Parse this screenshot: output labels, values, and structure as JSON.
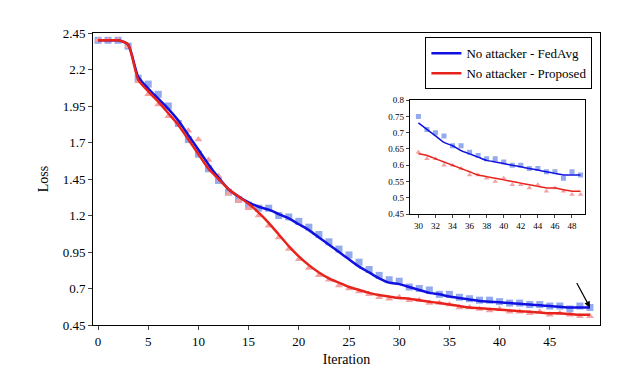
{
  "chart_data": [
    {
      "type": "line",
      "x_label": "Iteration",
      "y_label": "Loss",
      "x": [
        0,
        1,
        2,
        3,
        4,
        5,
        6,
        7,
        8,
        9,
        10,
        11,
        12,
        13,
        14,
        15,
        16,
        17,
        18,
        19,
        20,
        21,
        22,
        23,
        24,
        25,
        26,
        27,
        28,
        29,
        30,
        31,
        32,
        33,
        34,
        35,
        36,
        37,
        38,
        39,
        40,
        41,
        42,
        43,
        44,
        45,
        46,
        47,
        48,
        49
      ],
      "xlim": [
        -0.5,
        50
      ],
      "xticks": [
        0,
        5,
        10,
        15,
        20,
        25,
        30,
        35,
        40,
        45
      ],
      "ylim": [
        0.45,
        2.45
      ],
      "yticks": [
        0.45,
        0.7,
        0.95,
        1.2,
        1.45,
        1.7,
        1.95,
        2.2,
        2.45
      ],
      "grid": false,
      "legend": "upper right",
      "series": [
        {
          "type": "scatter",
          "marker": "square",
          "color": "#93abee",
          "values": [
            2.4,
            2.4,
            2.4,
            2.36,
            2.14,
            2.1,
            2.03,
            1.95,
            1.83,
            1.72,
            1.62,
            1.52,
            1.44,
            1.36,
            1.31,
            1.27,
            1.25,
            1.25,
            1.2,
            1.19,
            1.16,
            1.12,
            1.07,
            1.02,
            0.97,
            0.93,
            0.88,
            0.83,
            0.79,
            0.76,
            0.75,
            0.71,
            0.7,
            0.69,
            0.66,
            0.66,
            0.64,
            0.63,
            0.62,
            0.62,
            0.61,
            0.6,
            0.6,
            0.59,
            0.59,
            0.58,
            0.58,
            0.56,
            0.58,
            0.57
          ]
        },
        {
          "type": "scatter",
          "marker": "triangle",
          "color": "#f4a3a3",
          "values": [
            2.4,
            2.4,
            2.4,
            2.36,
            2.12,
            2.03,
            1.96,
            1.88,
            1.84,
            1.78,
            1.72,
            1.58,
            1.47,
            1.35,
            1.3,
            1.25,
            1.2,
            1.13,
            1.05,
            0.97,
            0.9,
            0.84,
            0.79,
            0.76,
            0.72,
            0.7,
            0.68,
            0.66,
            0.64,
            0.63,
            0.64,
            0.62,
            0.62,
            0.6,
            0.6,
            0.59,
            0.57,
            0.57,
            0.56,
            0.55,
            0.56,
            0.54,
            0.54,
            0.53,
            0.54,
            0.52,
            0.53,
            0.52,
            0.51,
            0.51
          ]
        },
        {
          "type": "line",
          "name": "No attacker - FedAvg",
          "color": "#1010e0",
          "line_style": "solid",
          "values": [
            2.4,
            2.4,
            2.4,
            2.37,
            2.15,
            2.07,
            2.0,
            1.93,
            1.85,
            1.75,
            1.65,
            1.55,
            1.46,
            1.38,
            1.33,
            1.29,
            1.26,
            1.24,
            1.21,
            1.18,
            1.14,
            1.1,
            1.05,
            1.0,
            0.95,
            0.9,
            0.85,
            0.81,
            0.77,
            0.74,
            0.73,
            0.71,
            0.69,
            0.67,
            0.66,
            0.645,
            0.635,
            0.625,
            0.615,
            0.61,
            0.605,
            0.6,
            0.595,
            0.59,
            0.585,
            0.58,
            0.575,
            0.57,
            0.57,
            0.57
          ]
        },
        {
          "type": "line",
          "name": "No attacker - Proposed",
          "color": "#e8231c",
          "line_style": "solid",
          "values": [
            2.4,
            2.4,
            2.4,
            2.37,
            2.13,
            2.05,
            1.98,
            1.9,
            1.82,
            1.72,
            1.62,
            1.52,
            1.45,
            1.38,
            1.33,
            1.28,
            1.22,
            1.15,
            1.07,
            0.99,
            0.92,
            0.86,
            0.81,
            0.77,
            0.74,
            0.71,
            0.69,
            0.67,
            0.655,
            0.645,
            0.635,
            0.63,
            0.62,
            0.61,
            0.6,
            0.59,
            0.58,
            0.57,
            0.565,
            0.56,
            0.555,
            0.55,
            0.545,
            0.54,
            0.535,
            0.53,
            0.53,
            0.525,
            0.52,
            0.52
          ]
        }
      ]
    },
    {
      "type": "line",
      "x": [
        30,
        31,
        32,
        33,
        34,
        35,
        36,
        37,
        38,
        39,
        40,
        41,
        42,
        43,
        44,
        45,
        46,
        47,
        48,
        49
      ],
      "xlim": [
        29,
        49.5
      ],
      "xticks": [
        30,
        32,
        34,
        36,
        38,
        40,
        42,
        44,
        46,
        48
      ],
      "ylim": [
        0.45,
        0.8
      ],
      "yticks": [
        0.45,
        0.5,
        0.55,
        0.6,
        0.65,
        0.7,
        0.75,
        0.8
      ],
      "grid": false,
      "series": [
        {
          "type": "scatter",
          "marker": "square",
          "color": "#93abee",
          "values": [
            0.75,
            0.71,
            0.7,
            0.69,
            0.66,
            0.66,
            0.64,
            0.63,
            0.62,
            0.62,
            0.61,
            0.6,
            0.6,
            0.59,
            0.59,
            0.58,
            0.58,
            0.56,
            0.58,
            0.57
          ]
        },
        {
          "type": "scatter",
          "marker": "triangle",
          "color": "#f4a3a3",
          "values": [
            0.64,
            0.62,
            0.62,
            0.6,
            0.6,
            0.59,
            0.57,
            0.57,
            0.56,
            0.55,
            0.56,
            0.54,
            0.54,
            0.53,
            0.54,
            0.52,
            0.53,
            0.52,
            0.51,
            0.51
          ]
        },
        {
          "type": "line",
          "color": "#1010e0",
          "line_style": "solid",
          "values": [
            0.73,
            0.71,
            0.69,
            0.67,
            0.66,
            0.645,
            0.635,
            0.625,
            0.615,
            0.61,
            0.605,
            0.6,
            0.595,
            0.59,
            0.585,
            0.58,
            0.575,
            0.57,
            0.57,
            0.57
          ]
        },
        {
          "type": "line",
          "color": "#e8231c",
          "line_style": "solid",
          "values": [
            0.635,
            0.63,
            0.62,
            0.61,
            0.6,
            0.59,
            0.58,
            0.57,
            0.565,
            0.56,
            0.555,
            0.55,
            0.545,
            0.54,
            0.535,
            0.53,
            0.53,
            0.525,
            0.52,
            0.52
          ]
        }
      ]
    }
  ]
}
